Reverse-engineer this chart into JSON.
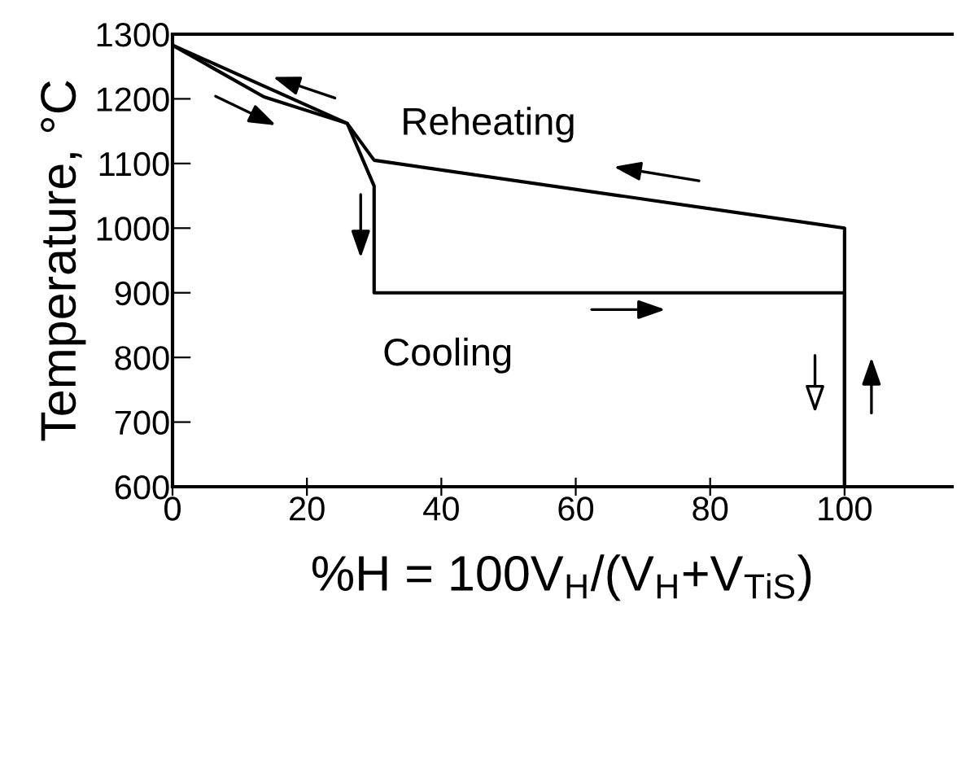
{
  "chart_data": {
    "type": "line",
    "xlabel": "%H = 100V$_{H}$/(V$_{H}$+V$_{TiS}$)",
    "ylabel": "Temperature, °C",
    "xlim": [
      0,
      116
    ],
    "xticks": [
      0,
      20,
      40,
      60,
      80,
      100
    ],
    "ylim": [
      600,
      1300
    ],
    "yticks": [
      600,
      700,
      800,
      900,
      1000,
      1100,
      1200,
      1300
    ],
    "grid": false,
    "legend": false,
    "marker": "none",
    "line_style": "solid",
    "series": [
      {
        "color": "#000000",
        "x": [
          0,
          13.6,
          26,
          30,
          30,
          100,
          100
        ],
        "values": [
          1283,
          1203,
          1162,
          1065,
          900,
          900,
          600
        ]
      },
      {
        "color": "#000000",
        "x": [
          100,
          100,
          30,
          26,
          0
        ],
        "values": [
          600,
          1000,
          1105,
          1162,
          1283
        ]
      }
    ],
    "annotations": [
      "Reheating",
      "Cooling"
    ]
  }
}
